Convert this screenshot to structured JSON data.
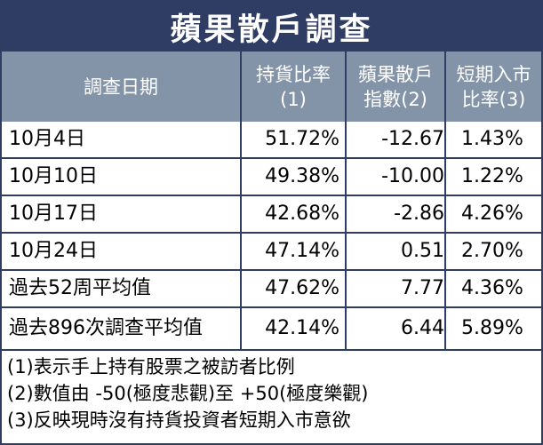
{
  "title": "蘋果散戶調查",
  "headers": {
    "date": "調查日期",
    "c1": [
      "持貨比率",
      "(1)"
    ],
    "c2": [
      "蘋果散戶",
      "指數(2)"
    ],
    "c3": [
      "短期入市",
      "比率(3)"
    ]
  },
  "rows": [
    {
      "date": "10月4日",
      "c1": "51.72%",
      "c2": "-12.67",
      "c3": "1.43%"
    },
    {
      "date": "10月10日",
      "c1": "49.38%",
      "c2": "-10.00",
      "c3": "1.22%"
    },
    {
      "date": "10月17日",
      "c1": "42.68%",
      "c2": "-2.86",
      "c3": "4.26%"
    },
    {
      "date": "10月24日",
      "c1": "47.14%",
      "c2": "0.51",
      "c3": "2.70%"
    },
    {
      "date": "過去52周平均值",
      "c1": "47.62%",
      "c2": "7.77",
      "c3": "4.36%"
    },
    {
      "date": "過去896次調查平均值",
      "c1": "42.14%",
      "c2": "6.44",
      "c3": "5.89%"
    }
  ],
  "notes": [
    "(1)表示手上持有股票之被訪者比例",
    "(2)數值由 -50(極度悲觀)至 +50(極度樂觀)",
    "(3)反映現時沒有持貨投資者短期入市意欲"
  ],
  "colors": {
    "title_bg": "#2f3c64",
    "header_bg": "#8494a8"
  }
}
